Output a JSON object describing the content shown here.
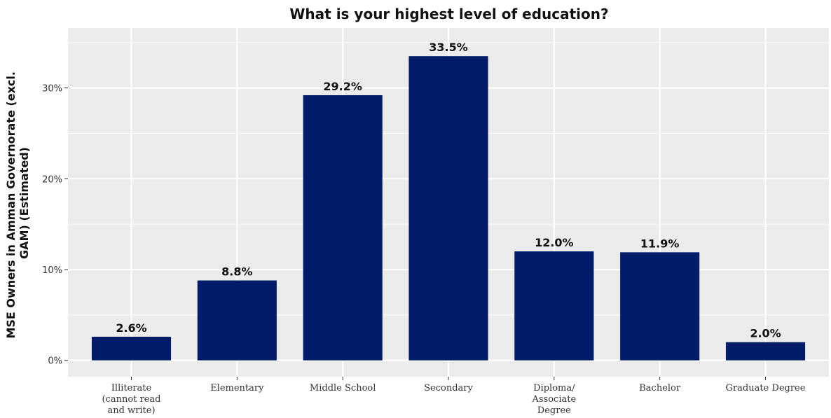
{
  "chart_data": {
    "type": "bar",
    "title": "What is your highest level of education?",
    "ylabel_lines": [
      "MSE Owners in Amman Governorate (excl.",
      "GAM) (Estimated)"
    ],
    "xlabel": "",
    "categories": [
      [
        "Illiterate",
        "(cannot read",
        "and write)"
      ],
      [
        "Elementary"
      ],
      [
        "Middle School"
      ],
      [
        "Secondary"
      ],
      [
        "Diploma/",
        "Associate",
        "Degree"
      ],
      [
        "Bachelor"
      ],
      [
        "Graduate Degree"
      ]
    ],
    "values": [
      2.6,
      8.8,
      29.2,
      33.5,
      12.0,
      11.9,
      2.0
    ],
    "data_labels": [
      "2.6%",
      "8.8%",
      "29.2%",
      "33.5%",
      "12.0%",
      "11.9%",
      "2.0%"
    ],
    "ylim": [
      -1.8,
      36.6
    ],
    "yticks": [
      0,
      10,
      20,
      30
    ],
    "ytick_labels": [
      "0%",
      "10%",
      "20%",
      "30%"
    ],
    "grid": true,
    "legend": "none",
    "colors": {
      "bar": "#031c69",
      "panel": "#ebebeb",
      "grid": "#ffffff"
    }
  }
}
